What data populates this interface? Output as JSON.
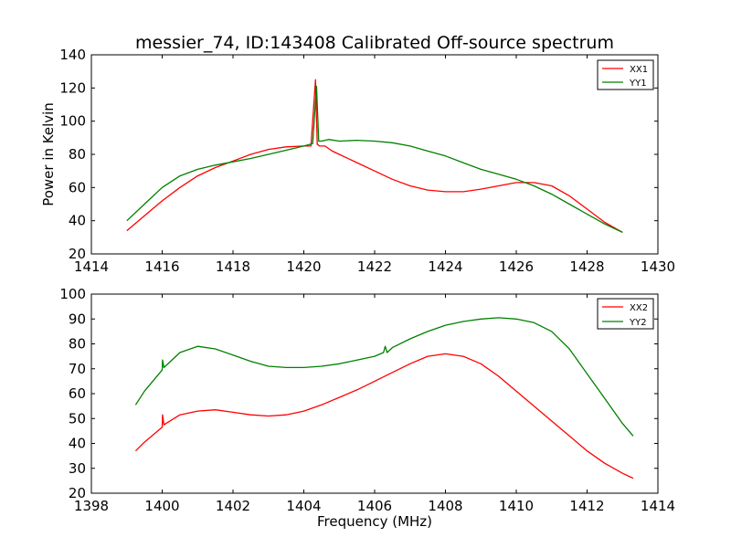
{
  "chart_data": [
    {
      "type": "line",
      "title": "messier_74, ID:143408 Calibrated Off-source spectrum",
      "xlabel": "",
      "ylabel": "Power in Kelvin",
      "xlim": [
        1414,
        1430
      ],
      "ylim": [
        20,
        140
      ],
      "xticks": [
        "1414",
        "1416",
        "1418",
        "1420",
        "1422",
        "1424",
        "1426",
        "1428",
        "1430"
      ],
      "yticks": [
        "20",
        "40",
        "60",
        "80",
        "100",
        "120",
        "140"
      ],
      "legend_position": "top-right",
      "series": [
        {
          "name": "XX1",
          "color": "#ff0000",
          "x": [
            1415.0,
            1415.5,
            1416.0,
            1416.5,
            1417.0,
            1417.5,
            1418.0,
            1418.5,
            1419.0,
            1419.5,
            1420.0,
            1420.2,
            1420.33,
            1420.38,
            1420.45,
            1420.6,
            1420.8,
            1421.0,
            1421.5,
            1422.0,
            1422.5,
            1423.0,
            1423.5,
            1424.0,
            1424.5,
            1425.0,
            1425.5,
            1426.0,
            1426.5,
            1427.0,
            1427.5,
            1428.0,
            1428.5,
            1429.0
          ],
          "y": [
            34,
            43,
            52,
            60,
            67,
            72,
            76,
            80,
            83,
            84.5,
            85,
            85,
            125,
            86,
            85,
            85,
            82,
            80,
            75,
            70,
            65,
            61,
            58.5,
            57.5,
            57.5,
            59,
            61,
            63,
            63,
            61,
            55,
            47,
            39,
            33
          ]
        },
        {
          "name": "YY1",
          "color": "#008000",
          "x": [
            1415.0,
            1415.5,
            1416.0,
            1416.5,
            1417.0,
            1417.5,
            1418.0,
            1418.5,
            1419.0,
            1419.5,
            1420.0,
            1420.25,
            1420.36,
            1420.42,
            1420.5,
            1420.7,
            1421.0,
            1421.5,
            1422.0,
            1422.5,
            1423.0,
            1423.5,
            1424.0,
            1424.5,
            1425.0,
            1425.5,
            1426.0,
            1426.5,
            1427.0,
            1427.5,
            1428.0,
            1428.5,
            1429.0
          ],
          "y": [
            40,
            50,
            60,
            67,
            71,
            73.5,
            75.5,
            77.5,
            80,
            82.5,
            85,
            86.5,
            121,
            88,
            88,
            89,
            88,
            88.5,
            88,
            87,
            85,
            82,
            79,
            75,
            71,
            68,
            65,
            61,
            56,
            50,
            44,
            38,
            33
          ]
        }
      ]
    },
    {
      "type": "line",
      "title": "",
      "xlabel": "Frequency (MHz)",
      "ylabel": "",
      "xlim": [
        1398,
        1414
      ],
      "ylim": [
        20,
        100
      ],
      "xticks": [
        "1398",
        "1400",
        "1402",
        "1404",
        "1406",
        "1408",
        "1410",
        "1412",
        "1414"
      ],
      "yticks": [
        "20",
        "30",
        "40",
        "50",
        "60",
        "70",
        "80",
        "90",
        "100"
      ],
      "legend_position": "top-right",
      "series": [
        {
          "name": "XX2",
          "color": "#ff0000",
          "x": [
            1399.25,
            1399.5,
            1400.0,
            1400.01,
            1400.05,
            1400.5,
            1401.0,
            1401.5,
            1402.0,
            1402.5,
            1403.0,
            1403.5,
            1404.0,
            1404.5,
            1405.0,
            1405.5,
            1406.0,
            1406.5,
            1407.0,
            1407.5,
            1408.0,
            1408.5,
            1409.0,
            1409.5,
            1410.0,
            1410.5,
            1411.0,
            1411.5,
            1412.0,
            1412.5,
            1413.0,
            1413.3
          ],
          "y": [
            37,
            40.5,
            46.5,
            51.5,
            47.5,
            51.5,
            53,
            53.5,
            52.5,
            51.5,
            51,
            51.5,
            53,
            55.5,
            58.5,
            61.5,
            65,
            68.5,
            72,
            75,
            76,
            75,
            72,
            67,
            61,
            55,
            49,
            43,
            37,
            32,
            28,
            26
          ]
        },
        {
          "name": "YY2",
          "color": "#008000",
          "x": [
            1399.25,
            1399.5,
            1400.0,
            1400.01,
            1400.05,
            1400.5,
            1401.0,
            1401.5,
            1402.0,
            1402.5,
            1403.0,
            1403.5,
            1404.0,
            1404.5,
            1405.0,
            1405.5,
            1406.0,
            1406.25,
            1406.3,
            1406.35,
            1406.5,
            1407.0,
            1407.5,
            1408.0,
            1408.5,
            1409.0,
            1409.5,
            1410.0,
            1410.5,
            1411.0,
            1411.5,
            1412.0,
            1412.5,
            1413.0,
            1413.3
          ],
          "y": [
            55.5,
            61,
            69.5,
            73.5,
            70.5,
            76.5,
            79,
            78,
            75.5,
            73,
            71,
            70.5,
            70.5,
            71,
            72,
            73.5,
            75,
            76.5,
            79,
            76.5,
            78.5,
            82,
            85,
            87.5,
            89,
            90,
            90.5,
            90,
            88.5,
            85,
            78,
            68,
            58,
            48,
            43
          ]
        }
      ]
    }
  ]
}
